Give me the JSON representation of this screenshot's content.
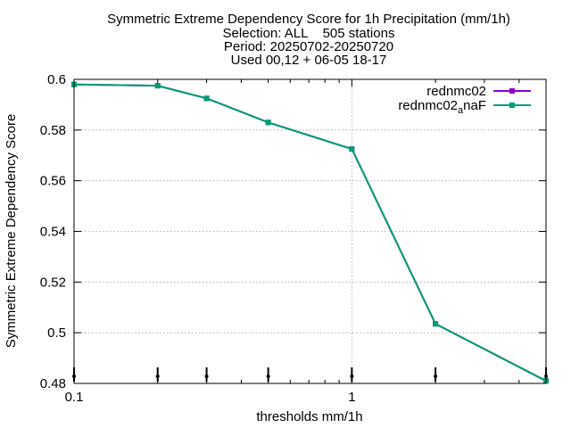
{
  "chart_data": {
    "type": "line",
    "title_lines": [
      "Symmetric Extreme Dependency Score  for 1h Precipitation (mm/1h)",
      "Selection: ALL    505 stations",
      "Period: 20250702-20250720",
      "Used 00,12 + 06-05 18-17"
    ],
    "xlabel": "thresholds mm/1h",
    "ylabel": "Symmetric Extreme Dependency Score",
    "xscale": "log",
    "xlim": [
      0.1,
      5
    ],
    "ylim": [
      0.48,
      0.6
    ],
    "x_ticks": [
      {
        "value": 0.1,
        "label": "0.1"
      },
      {
        "value": 1,
        "label": "1"
      }
    ],
    "y_ticks": [
      {
        "value": 0.48,
        "label": "0.48"
      },
      {
        "value": 0.5,
        "label": "0.5"
      },
      {
        "value": 0.52,
        "label": "0.52"
      },
      {
        "value": 0.54,
        "label": "0.54"
      },
      {
        "value": 0.56,
        "label": "0.56"
      },
      {
        "value": 0.58,
        "label": "0.58"
      },
      {
        "value": 0.6,
        "label": "0.6"
      }
    ],
    "grid": true,
    "legend_position": "top-right",
    "series": [
      {
        "name": "rednmc02",
        "color": "#9400d3",
        "x": [
          0.1,
          0.2,
          0.3,
          0.5,
          1,
          2,
          5
        ],
        "y": [
          0.598,
          0.5975,
          0.5925,
          0.583,
          0.5725,
          0.5035,
          0.481
        ]
      },
      {
        "name_main": "rednmc02",
        "name_sub": "a",
        "name_tail": "naF",
        "color": "#009e73",
        "x": [
          0.1,
          0.2,
          0.3,
          0.5,
          1,
          2,
          5
        ],
        "y": [
          0.598,
          0.5975,
          0.5925,
          0.583,
          0.5725,
          0.5035,
          0.481
        ]
      }
    ],
    "threshold_markers": [
      0.1,
      0.2,
      0.3,
      0.5,
      1,
      2,
      5
    ]
  }
}
